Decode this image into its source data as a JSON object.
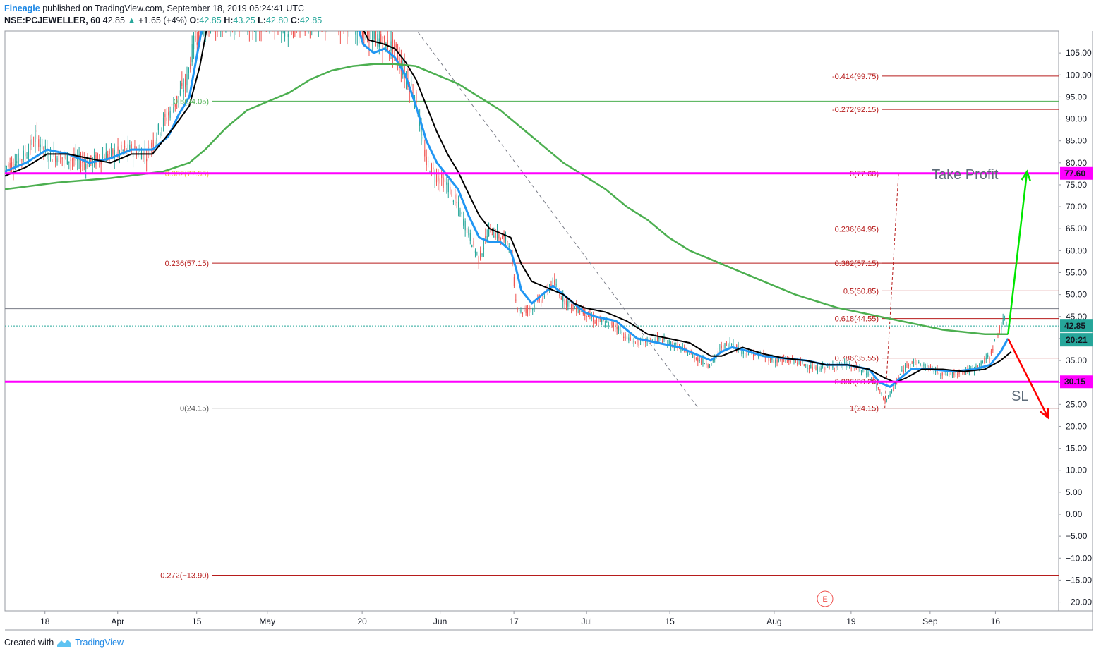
{
  "header": {
    "brand": "Fineagle",
    "published": "published on TradingView.com, September 18, 2019 06:24:41 UTC",
    "symbol": "NSE:PCJEWELLER, 60",
    "price": "42.85",
    "change_arrow": "▲",
    "change": "+1.65 (+4%)",
    "o_label": "O:",
    "o": "42.85",
    "h_label": "H:",
    "h": "43.25",
    "l_label": "L:",
    "l": "42.80",
    "c_label": "C:",
    "c": "42.85"
  },
  "footer": {
    "created": "Created with",
    "brand": "TradingView",
    "icon": "tradingview-logo-icon"
  },
  "colors": {
    "magenta": "#ff00ff",
    "fib_red": "#b71c1c",
    "sma_green": "#4caf50",
    "ema_blue": "#2196f3",
    "ema_black": "#000000",
    "up": "#26a69a",
    "down": "#ef5350",
    "green_arrow": "#00e600",
    "red_arrow": "#ff0000"
  },
  "chart_data": {
    "type": "line",
    "title": "",
    "ylim": [
      -22,
      110
    ],
    "y_ticks": [
      "105.00",
      "100.00",
      "95.00",
      "90.00",
      "85.00",
      "80.00",
      "75.00",
      "70.00",
      "65.00",
      "60.00",
      "55.00",
      "50.00",
      "45.00",
      "40.00",
      "35.00",
      "30.00",
      "25.00",
      "20.00",
      "15.00",
      "10.00",
      "5.00",
      "0.00",
      "−5.00",
      "−10.00",
      "−15.00",
      "−20.00"
    ],
    "y_tick_values": [
      105,
      100,
      95,
      90,
      85,
      80,
      75,
      70,
      65,
      60,
      55,
      50,
      45,
      40,
      35,
      30,
      25,
      20,
      15,
      10,
      5,
      0,
      -5,
      -10,
      -15,
      -20
    ],
    "x_ticks": [
      {
        "label": "18",
        "t": 0.038
      },
      {
        "label": "Apr",
        "t": 0.107
      },
      {
        "label": "15",
        "t": 0.182
      },
      {
        "label": "May",
        "t": 0.249
      },
      {
        "label": "20",
        "t": 0.339
      },
      {
        "label": "Jun",
        "t": 0.413
      },
      {
        "label": "17",
        "t": 0.483
      },
      {
        "label": "Jul",
        "t": 0.552
      },
      {
        "label": "15",
        "t": 0.631
      },
      {
        "label": "Aug",
        "t": 0.73
      },
      {
        "label": "19",
        "t": 0.803
      },
      {
        "label": "Sep",
        "t": 0.878
      },
      {
        "label": "16",
        "t": 0.94
      }
    ],
    "x_range": [
      0,
      1
    ],
    "grid": false,
    "series": [
      {
        "key": "price",
        "points": [
          [
            0,
            79
          ],
          [
            0.01,
            80
          ],
          [
            0.02,
            82
          ],
          [
            0.03,
            86
          ],
          [
            0.04,
            82
          ],
          [
            0.06,
            81
          ],
          [
            0.08,
            80
          ],
          [
            0.1,
            82
          ],
          [
            0.12,
            83
          ],
          [
            0.135,
            82
          ],
          [
            0.145,
            87
          ],
          [
            0.16,
            93
          ],
          [
            0.172,
            98
          ],
          [
            0.18,
            108
          ],
          [
            0.19,
            112
          ],
          [
            0.26,
            112
          ],
          [
            0.27,
            110
          ],
          [
            0.28,
            112
          ],
          [
            0.33,
            112
          ],
          [
            0.34,
            110
          ],
          [
            0.35,
            109
          ],
          [
            0.36,
            107
          ],
          [
            0.37,
            106
          ],
          [
            0.38,
            100
          ],
          [
            0.39,
            95
          ],
          [
            0.4,
            80
          ],
          [
            0.41,
            77
          ],
          [
            0.42,
            75
          ],
          [
            0.43,
            70
          ],
          [
            0.44,
            64
          ],
          [
            0.45,
            58
          ],
          [
            0.46,
            65
          ],
          [
            0.47,
            63
          ],
          [
            0.48,
            62
          ],
          [
            0.485,
            48
          ],
          [
            0.49,
            46
          ],
          [
            0.5,
            47
          ],
          [
            0.51,
            49
          ],
          [
            0.52,
            53
          ],
          [
            0.525,
            51
          ],
          [
            0.53,
            49
          ],
          [
            0.54,
            47
          ],
          [
            0.55,
            46
          ],
          [
            0.56,
            44
          ],
          [
            0.58,
            43
          ],
          [
            0.59,
            40
          ],
          [
            0.6,
            39
          ],
          [
            0.62,
            40
          ],
          [
            0.64,
            38
          ],
          [
            0.66,
            35
          ],
          [
            0.67,
            34
          ],
          [
            0.68,
            38
          ],
          [
            0.69,
            39
          ],
          [
            0.7,
            37
          ],
          [
            0.72,
            36
          ],
          [
            0.73,
            35
          ],
          [
            0.75,
            35
          ],
          [
            0.77,
            33
          ],
          [
            0.79,
            34
          ],
          [
            0.8,
            34
          ],
          [
            0.82,
            32
          ],
          [
            0.83,
            28
          ],
          [
            0.835,
            26
          ],
          [
            0.84,
            27
          ],
          [
            0.85,
            32
          ],
          [
            0.86,
            35
          ],
          [
            0.87,
            34
          ],
          [
            0.88,
            33
          ],
          [
            0.89,
            32
          ],
          [
            0.9,
            32
          ],
          [
            0.92,
            33
          ],
          [
            0.935,
            36
          ],
          [
            0.94,
            40
          ],
          [
            0.948,
            44
          ],
          [
            0.952,
            42.85
          ]
        ]
      },
      {
        "key": "ema_fast",
        "color": "#2196f3",
        "points": [
          [
            0,
            78
          ],
          [
            0.02,
            80
          ],
          [
            0.04,
            83
          ],
          [
            0.06,
            82
          ],
          [
            0.08,
            80
          ],
          [
            0.1,
            81
          ],
          [
            0.12,
            83
          ],
          [
            0.14,
            83
          ],
          [
            0.155,
            86
          ],
          [
            0.165,
            91
          ],
          [
            0.175,
            95
          ],
          [
            0.185,
            108
          ],
          [
            0.19,
            115
          ],
          [
            0.33,
            115
          ],
          [
            0.34,
            107
          ],
          [
            0.35,
            105
          ],
          [
            0.36,
            106
          ],
          [
            0.37,
            104
          ],
          [
            0.38,
            100
          ],
          [
            0.39,
            93
          ],
          [
            0.4,
            85
          ],
          [
            0.41,
            80
          ],
          [
            0.42,
            77
          ],
          [
            0.43,
            74
          ],
          [
            0.44,
            68
          ],
          [
            0.45,
            63
          ],
          [
            0.46,
            62
          ],
          [
            0.47,
            62
          ],
          [
            0.48,
            60
          ],
          [
            0.485,
            56
          ],
          [
            0.49,
            51
          ],
          [
            0.5,
            48
          ],
          [
            0.51,
            50
          ],
          [
            0.52,
            52
          ],
          [
            0.53,
            50
          ],
          [
            0.54,
            48
          ],
          [
            0.55,
            46
          ],
          [
            0.56,
            45
          ],
          [
            0.58,
            44
          ],
          [
            0.59,
            42
          ],
          [
            0.6,
            40
          ],
          [
            0.62,
            39
          ],
          [
            0.64,
            38
          ],
          [
            0.66,
            36
          ],
          [
            0.67,
            35
          ],
          [
            0.68,
            37
          ],
          [
            0.69,
            38
          ],
          [
            0.7,
            37.5
          ],
          [
            0.72,
            36
          ],
          [
            0.74,
            35.5
          ],
          [
            0.76,
            35
          ],
          [
            0.78,
            34
          ],
          [
            0.8,
            34
          ],
          [
            0.82,
            33
          ],
          [
            0.83,
            30
          ],
          [
            0.84,
            29
          ],
          [
            0.85,
            31
          ],
          [
            0.86,
            33
          ],
          [
            0.88,
            33
          ],
          [
            0.9,
            32.5
          ],
          [
            0.92,
            33
          ],
          [
            0.935,
            34
          ],
          [
            0.945,
            37
          ],
          [
            0.952,
            40
          ]
        ]
      },
      {
        "key": "ema_slow",
        "color": "#000000",
        "points": [
          [
            0,
            77
          ],
          [
            0.02,
            79
          ],
          [
            0.04,
            82
          ],
          [
            0.06,
            82
          ],
          [
            0.08,
            81
          ],
          [
            0.1,
            80
          ],
          [
            0.12,
            82
          ],
          [
            0.14,
            82
          ],
          [
            0.16,
            88
          ],
          [
            0.175,
            93
          ],
          [
            0.185,
            102
          ],
          [
            0.195,
            115
          ],
          [
            0.33,
            115
          ],
          [
            0.345,
            108
          ],
          [
            0.36,
            107
          ],
          [
            0.37,
            106
          ],
          [
            0.38,
            103
          ],
          [
            0.39,
            99
          ],
          [
            0.4,
            93
          ],
          [
            0.41,
            87
          ],
          [
            0.42,
            82
          ],
          [
            0.43,
            78
          ],
          [
            0.44,
            73
          ],
          [
            0.45,
            68
          ],
          [
            0.46,
            65
          ],
          [
            0.47,
            64
          ],
          [
            0.48,
            63
          ],
          [
            0.49,
            57
          ],
          [
            0.5,
            53
          ],
          [
            0.51,
            52
          ],
          [
            0.52,
            51
          ],
          [
            0.53,
            50
          ],
          [
            0.54,
            48
          ],
          [
            0.55,
            47
          ],
          [
            0.57,
            46
          ],
          [
            0.59,
            44
          ],
          [
            0.61,
            41
          ],
          [
            0.63,
            40
          ],
          [
            0.65,
            39
          ],
          [
            0.67,
            36
          ],
          [
            0.68,
            36
          ],
          [
            0.69,
            37
          ],
          [
            0.7,
            38
          ],
          [
            0.72,
            36.5
          ],
          [
            0.74,
            35.5
          ],
          [
            0.76,
            35
          ],
          [
            0.78,
            34
          ],
          [
            0.8,
            34
          ],
          [
            0.82,
            33
          ],
          [
            0.835,
            31
          ],
          [
            0.845,
            30
          ],
          [
            0.855,
            31
          ],
          [
            0.87,
            33
          ],
          [
            0.89,
            33
          ],
          [
            0.91,
            32.5
          ],
          [
            0.93,
            33
          ],
          [
            0.945,
            35
          ],
          [
            0.955,
            37
          ]
        ]
      },
      {
        "key": "sma_long",
        "color": "#4caf50",
        "points": [
          [
            0,
            74
          ],
          [
            0.05,
            75.5
          ],
          [
            0.1,
            76.5
          ],
          [
            0.15,
            78
          ],
          [
            0.175,
            80
          ],
          [
            0.19,
            83
          ],
          [
            0.21,
            88
          ],
          [
            0.23,
            92
          ],
          [
            0.25,
            94
          ],
          [
            0.27,
            96
          ],
          [
            0.29,
            99
          ],
          [
            0.31,
            101
          ],
          [
            0.33,
            102
          ],
          [
            0.35,
            102.5
          ],
          [
            0.37,
            102.5
          ],
          [
            0.39,
            102
          ],
          [
            0.41,
            100
          ],
          [
            0.43,
            98
          ],
          [
            0.45,
            95
          ],
          [
            0.47,
            92
          ],
          [
            0.49,
            88
          ],
          [
            0.51,
            84
          ],
          [
            0.53,
            80
          ],
          [
            0.55,
            77
          ],
          [
            0.57,
            74
          ],
          [
            0.59,
            70
          ],
          [
            0.61,
            67
          ],
          [
            0.63,
            63
          ],
          [
            0.65,
            60
          ],
          [
            0.67,
            58
          ],
          [
            0.69,
            56
          ],
          [
            0.71,
            54
          ],
          [
            0.73,
            52
          ],
          [
            0.75,
            50
          ],
          [
            0.77,
            48.5
          ],
          [
            0.79,
            47
          ],
          [
            0.81,
            46
          ],
          [
            0.83,
            45
          ],
          [
            0.85,
            44
          ],
          [
            0.87,
            43
          ],
          [
            0.89,
            42
          ],
          [
            0.91,
            41.5
          ],
          [
            0.93,
            41
          ],
          [
            0.952,
            41
          ]
        ]
      }
    ],
    "horizontal_lines": [
      {
        "y": 77.6,
        "color": "#ff00ff",
        "width": 3,
        "label": "77.60"
      },
      {
        "y": 30.15,
        "color": "#ff00ff",
        "width": 3,
        "label": "30.15"
      }
    ],
    "price_level": {
      "y": 42.85,
      "label": "42.85"
    },
    "countdown": {
      "label": "20:21"
    },
    "fib_left": [
      {
        "label": "0.5(94.05)",
        "y": 94.05,
        "color": "#4caf50",
        "line": "#4caf50"
      },
      {
        "label": "0.382(77.55)",
        "y": 77.55,
        "color": "#e6c229",
        "line": "#e6c229"
      },
      {
        "label": "0.236(57.15)",
        "y": 57.15,
        "color": "#b71c1c",
        "line": "#b71c1c"
      },
      {
        "label": "0(24.15)",
        "y": 24.15,
        "color": "#555555",
        "line": "#555555"
      },
      {
        "label": "-0.272(−13.90)",
        "y": -13.9,
        "color": "#b71c1c",
        "line": "#b71c1c"
      }
    ],
    "fib_right": [
      {
        "label": "-0.414(99.75)",
        "y": 99.75
      },
      {
        "label": "-0.272(92.15)",
        "y": 92.15
      },
      {
        "label": "0(77.60)",
        "y": 77.6
      },
      {
        "label": "0.236(64.95)",
        "y": 64.95
      },
      {
        "label": "0.382(57.15)",
        "y": 57.15
      },
      {
        "label": "0.5(50.85)",
        "y": 50.85
      },
      {
        "label": "0.618(44.55)",
        "y": 44.55
      },
      {
        "label": "0.786(35.55)",
        "y": 35.55
      },
      {
        "label": "0.886(30.20)",
        "y": 30.2
      },
      {
        "label": "1(24.15)",
        "y": 24.15
      }
    ],
    "gray_line": {
      "y": 46.8
    },
    "annotations": {
      "take_profit": "Take Profit",
      "sl": "SL",
      "earnings_marker": "E"
    },
    "arrows": {
      "green": {
        "from": [
          0.952,
          41
        ],
        "to": [
          0.97,
          78
        ]
      },
      "red": {
        "from": [
          0.952,
          40
        ],
        "to": [
          0.99,
          22
        ]
      }
    },
    "trend_dashed": {
      "from": [
        0.385,
        112
      ],
      "to": [
        0.658,
        24.15
      ]
    },
    "fib_vertical_dashed": {
      "from": [
        0.835,
        24.15
      ],
      "to": [
        0.848,
        77.6
      ]
    }
  }
}
